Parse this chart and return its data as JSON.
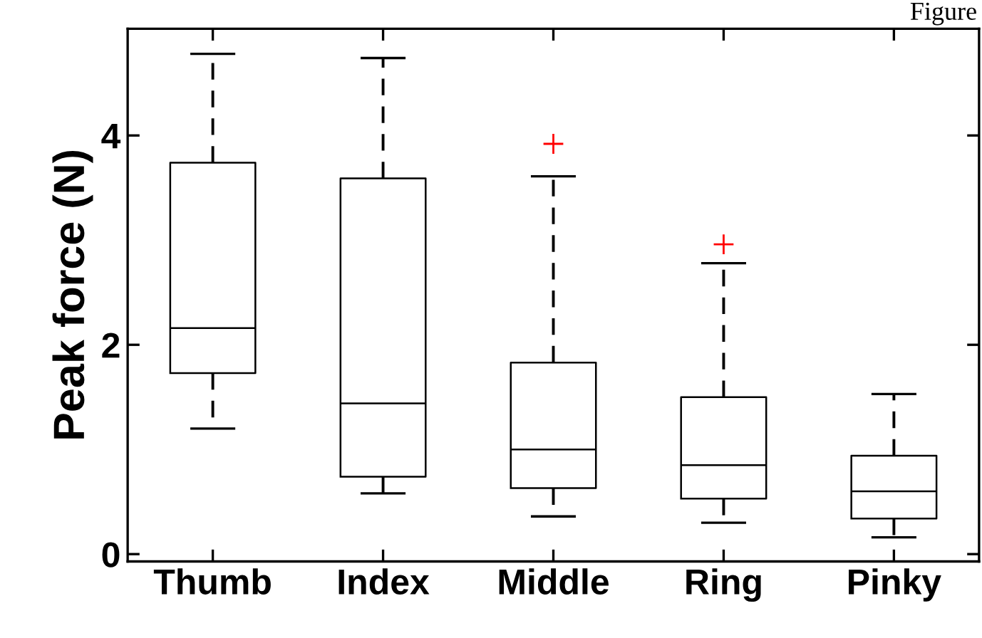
{
  "chart_data": {
    "type": "box",
    "ylabel": "Peak force (N)",
    "categories": [
      "Thumb",
      "Index",
      "Middle",
      "Ring",
      "Pinky"
    ],
    "ylim": [
      -0.07,
      5.02
    ],
    "yticks": [
      0,
      2,
      4
    ],
    "grid": false,
    "boxes": [
      {
        "low": 1.2,
        "q1": 1.73,
        "median": 2.16,
        "q3": 3.74,
        "high": 4.78
      },
      {
        "low": 0.58,
        "q1": 0.74,
        "median": 1.44,
        "q3": 3.59,
        "high": 4.74
      },
      {
        "low": 0.36,
        "q1": 0.63,
        "median": 1.0,
        "q3": 1.83,
        "high": 3.61,
        "outliers": [
          3.92
        ]
      },
      {
        "low": 0.3,
        "q1": 0.53,
        "median": 0.85,
        "q3": 1.5,
        "high": 2.78,
        "outliers": [
          2.96
        ]
      },
      {
        "low": 0.16,
        "q1": 0.34,
        "median": 0.6,
        "q3": 0.94,
        "high": 1.53
      }
    ],
    "annotations": [
      "Figure"
    ]
  }
}
